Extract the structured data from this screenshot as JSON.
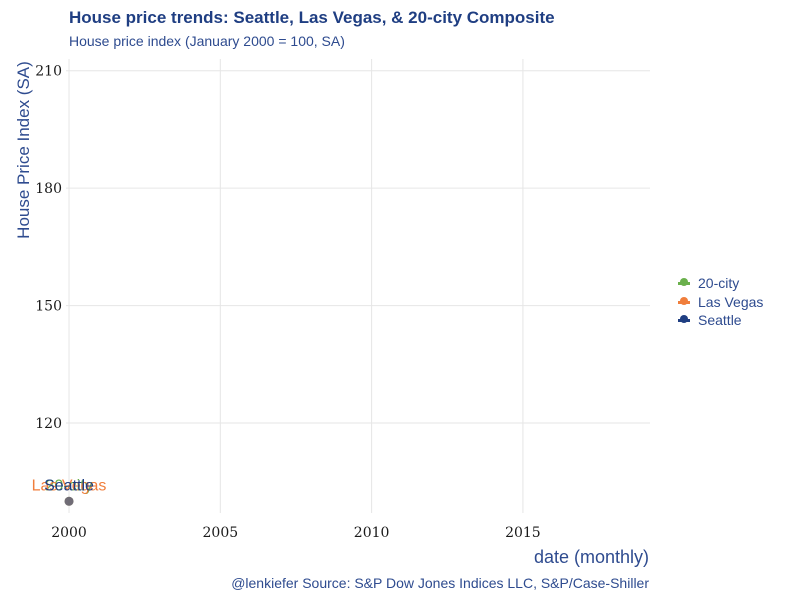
{
  "chart_data": {
    "type": "line",
    "title": "House price trends: Seattle, Las Vegas, & 20-city Composite",
    "subtitle": "House price index (January 2000 = 100, SA)",
    "xlabel": "date (monthly)",
    "ylabel": "House Price Index (SA)",
    "caption": "@lenkiefer Source: S&P Dow Jones Indices LLC, S&P/Case-Shiller",
    "xlim": [
      1999.9,
      2019.2
    ],
    "ylim": [
      97,
      213
    ],
    "x_ticks": [
      "2000",
      "2005",
      "2010",
      "2015"
    ],
    "x_tick_values": [
      2000,
      2005,
      2010,
      2015
    ],
    "y_ticks": [
      "120",
      "150",
      "180",
      "210"
    ],
    "y_tick_values": [
      120,
      150,
      180,
      210
    ],
    "grid": true,
    "legend_position": "right",
    "series": [
      {
        "name": "20-city",
        "color": "#6ab04c",
        "x": [
          2000.0
        ],
        "y": [
          100
        ]
      },
      {
        "name": "Las Vegas",
        "color": "#f07e3c",
        "x": [
          2000.0
        ],
        "y": [
          100
        ]
      },
      {
        "name": "Seattle",
        "color": "#1f3e82",
        "x": [
          2000.0
        ],
        "y": [
          100
        ]
      }
    ],
    "point_labels": [
      {
        "text": "20-city",
        "series": "20-city",
        "color": "#6ab04c"
      },
      {
        "text": "Las Vegas",
        "series": "Las Vegas",
        "color": "#f07e3c"
      },
      {
        "text": "Seattle",
        "series": "Seattle",
        "color": "#1f3e82"
      }
    ]
  }
}
